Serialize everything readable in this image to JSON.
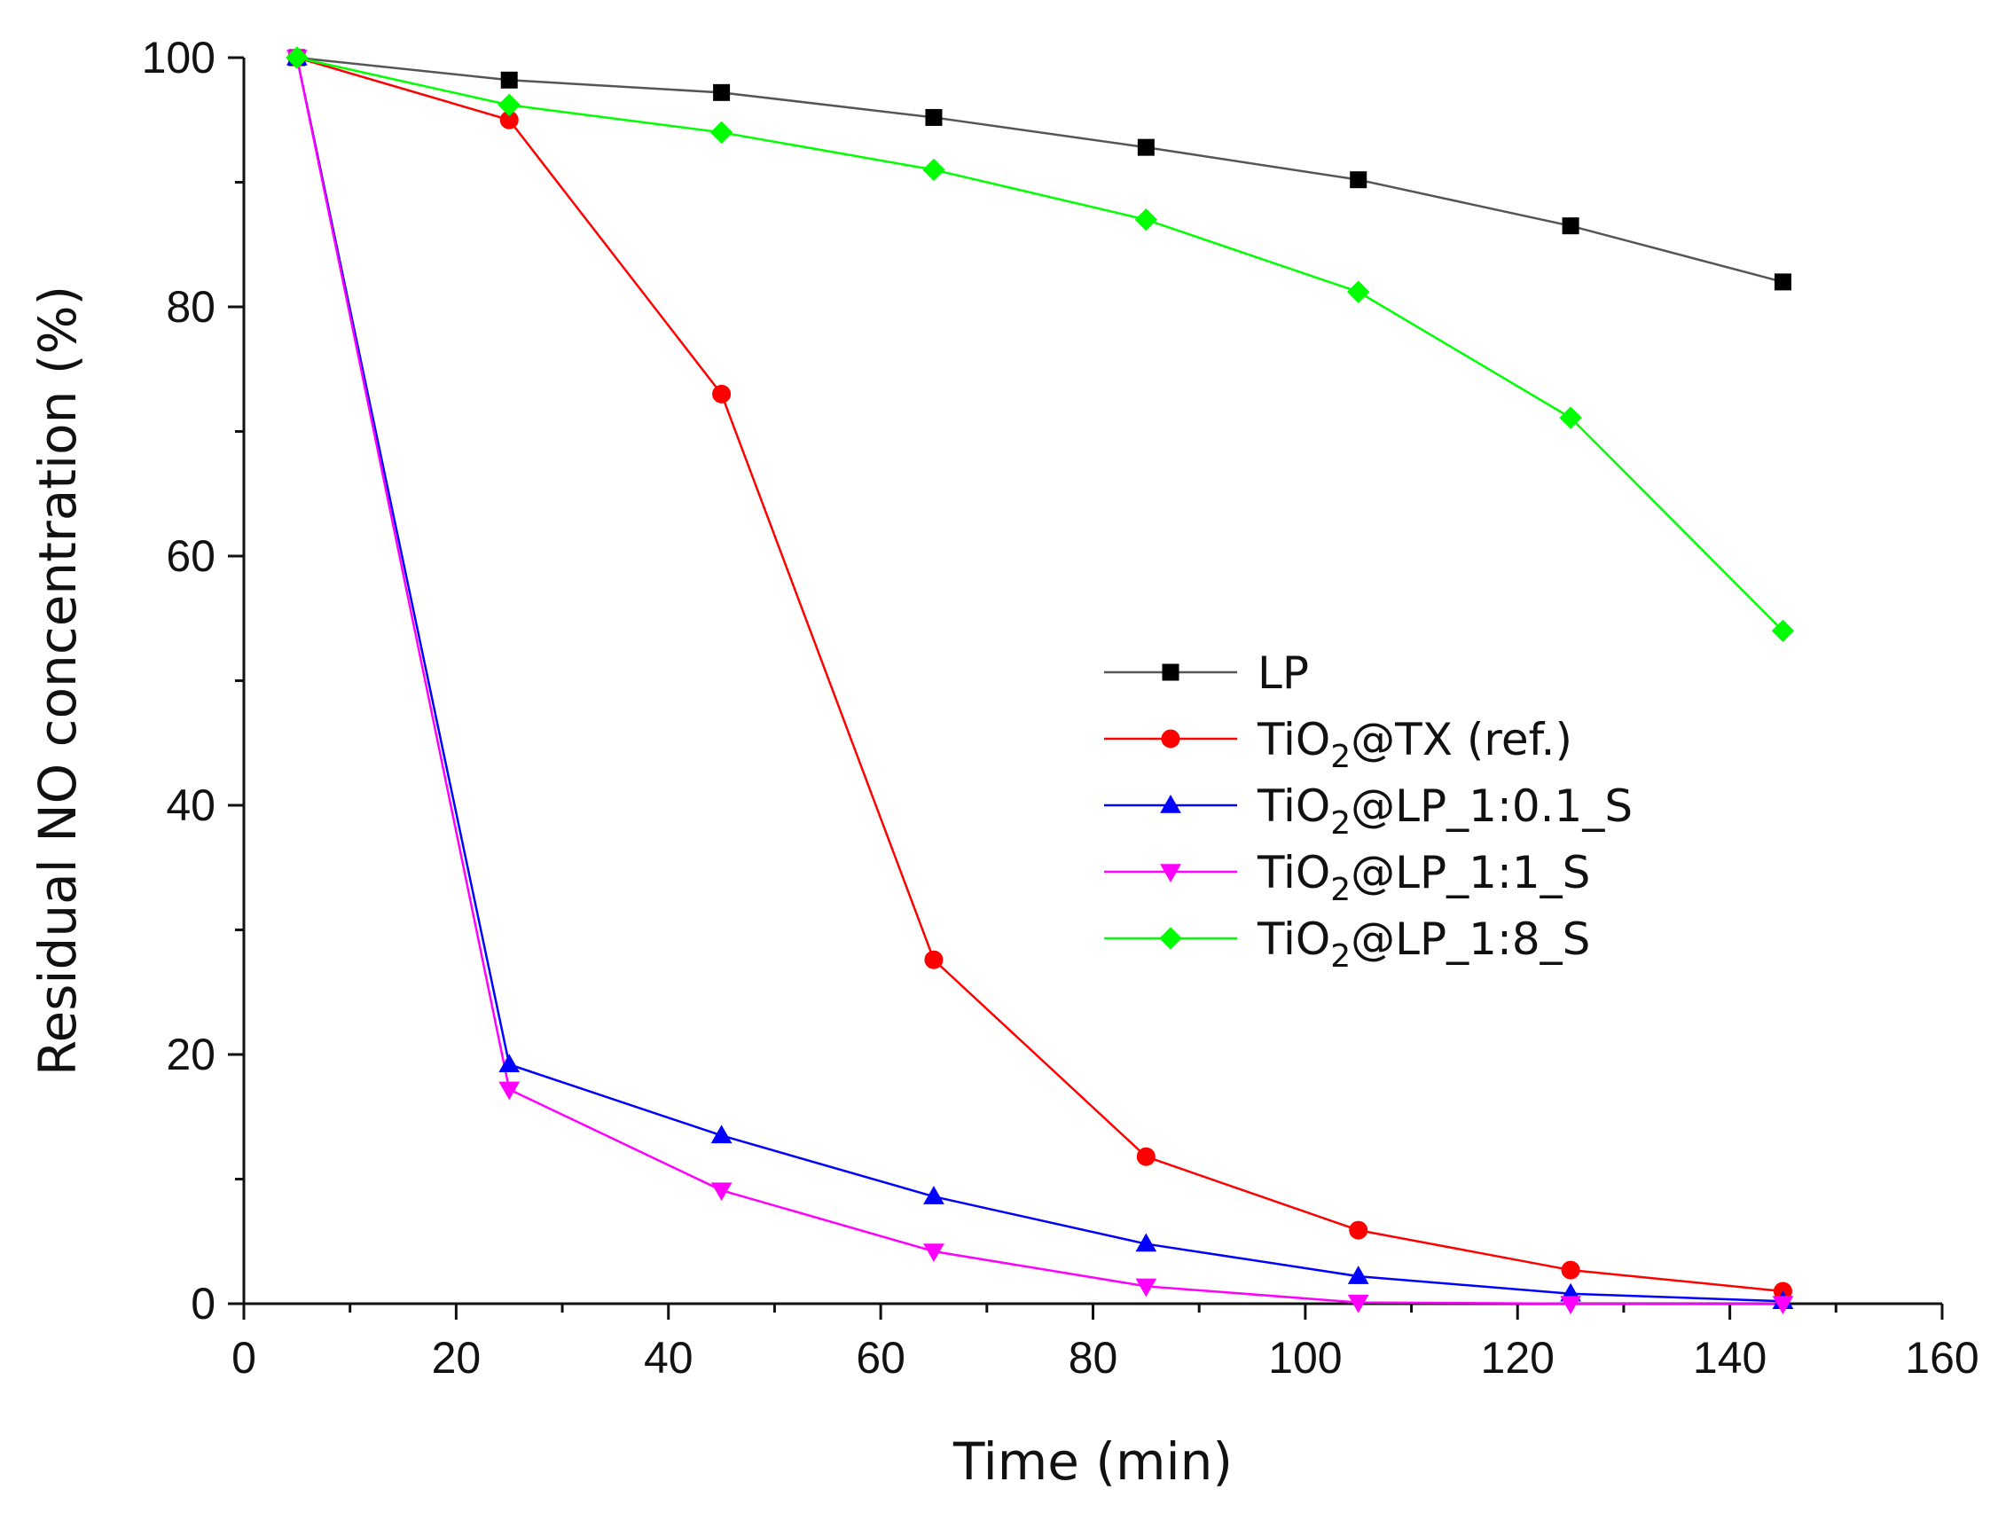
{
  "chart_data": {
    "type": "line",
    "title": "",
    "xlabel": "Time (min)",
    "ylabel": "Residual NO concentration (%)",
    "xlim": [
      0,
      160
    ],
    "ylim": [
      0,
      100
    ],
    "xticks": [
      0,
      20,
      40,
      60,
      80,
      100,
      120,
      140,
      160
    ],
    "yticks": [
      0,
      20,
      40,
      60,
      80,
      100
    ],
    "grid": false,
    "legend_position": "center-right",
    "x": [
      5,
      25,
      45,
      65,
      85,
      105,
      125,
      145
    ],
    "series": [
      {
        "name": "LP",
        "legend_base": "LP",
        "legend_tail": "",
        "marker": "square",
        "color": "#000000",
        "line_color": "#555555",
        "values": [
          100,
          98.2,
          97.2,
          95.2,
          92.8,
          90.2,
          86.5,
          82
        ]
      },
      {
        "name": "TiO2@TX (ref.)",
        "legend_base": "TiO",
        "legend_tail": "@TX (ref.)",
        "marker": "circle",
        "color": "#ff0000",
        "line_color": "#ff0000",
        "values": [
          100,
          95,
          73,
          27.6,
          11.8,
          5.9,
          2.7,
          1.0
        ]
      },
      {
        "name": "TiO2@LP_1:0.1_S",
        "legend_base": "TiO",
        "legend_tail": "@LP_1:0.1_S",
        "marker": "triangle-up",
        "color": "#0000ff",
        "line_color": "#0000ff",
        "values": [
          100,
          19.2,
          13.5,
          8.6,
          4.8,
          2.2,
          0.8,
          0.2
        ]
      },
      {
        "name": "TiO2@LP_1:1_S",
        "legend_base": "TiO",
        "legend_tail": "@LP_1:1_S",
        "marker": "triangle-down",
        "color": "#ff00ff",
        "line_color": "#ff00ff",
        "values": [
          100,
          17.2,
          9.1,
          4.2,
          1.4,
          0.1,
          0.0,
          0.0
        ]
      },
      {
        "name": "TiO2@LP_1:8_S",
        "legend_base": "TiO",
        "legend_tail": "@LP_1:8_S",
        "marker": "diamond",
        "color": "#00ff00",
        "line_color": "#00ff00",
        "values": [
          100,
          96.2,
          94,
          91,
          87,
          81.2,
          71.1,
          54
        ]
      }
    ],
    "legend_subscript": "2"
  }
}
